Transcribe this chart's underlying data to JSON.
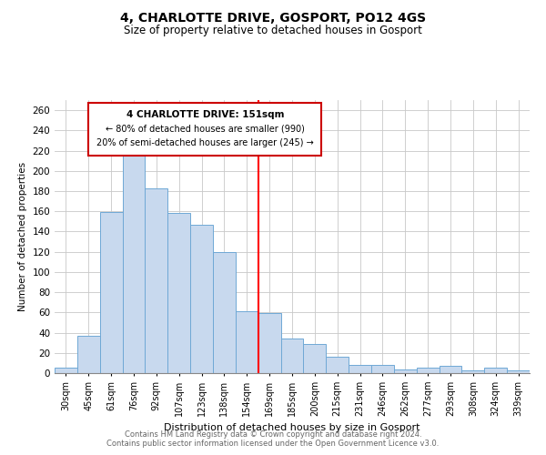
{
  "title": "4, CHARLOTTE DRIVE, GOSPORT, PO12 4GS",
  "subtitle": "Size of property relative to detached houses in Gosport",
  "xlabel": "Distribution of detached houses by size in Gosport",
  "ylabel": "Number of detached properties",
  "footnote1": "Contains HM Land Registry data © Crown copyright and database right 2024.",
  "footnote2": "Contains public sector information licensed under the Open Government Licence v3.0.",
  "bar_labels": [
    "30sqm",
    "45sqm",
    "61sqm",
    "76sqm",
    "92sqm",
    "107sqm",
    "123sqm",
    "138sqm",
    "154sqm",
    "169sqm",
    "185sqm",
    "200sqm",
    "215sqm",
    "231sqm",
    "246sqm",
    "262sqm",
    "277sqm",
    "293sqm",
    "308sqm",
    "324sqm",
    "339sqm"
  ],
  "bar_values": [
    5,
    37,
    159,
    219,
    183,
    158,
    147,
    120,
    61,
    59,
    34,
    29,
    16,
    8,
    8,
    4,
    5,
    7,
    3,
    5,
    3
  ],
  "bar_color": "#c8d9ee",
  "bar_edge_color": "#6fa8d5",
  "vline_x_index": 8,
  "vline_color": "red",
  "annotation_title": "4 CHARLOTTE DRIVE: 151sqm",
  "annotation_line1": "← 80% of detached houses are smaller (990)",
  "annotation_line2": "20% of semi-detached houses are larger (245) →",
  "annotation_box_color": "#ffffff",
  "annotation_box_edge": "#cc0000",
  "ylim": [
    0,
    270
  ],
  "yticks": [
    0,
    20,
    40,
    60,
    80,
    100,
    120,
    140,
    160,
    180,
    200,
    220,
    240,
    260
  ],
  "background_color": "#ffffff",
  "grid_color": "#c8c8c8"
}
